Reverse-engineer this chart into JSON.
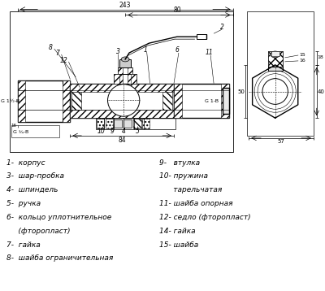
{
  "bg_color": "#ffffff",
  "legend_items_left": [
    "1-  корпус",
    "3-  шар-пробка",
    "4-  шпиндель",
    "5-  ручка",
    "6-  кольцо уплотнительное",
    "     (фторопласт)",
    "7-  гайка",
    "8-  шайба ограничительная"
  ],
  "legend_items_right": [
    "9-   втулка",
    "10- пружина",
    "      тарельчатая",
    "11- шайба опорная",
    "12- седло (фторопласт)",
    "14- гайка",
    "15- шайба"
  ],
  "dim_243": "243",
  "dim_80": "80",
  "dim_84": "84",
  "dim_G34_B": "G ¾-B",
  "dim_G1h_B": "G 1½-B",
  "dim_G1_B": "G 1-B",
  "dim_57": "57",
  "dim_50": "50",
  "dim_40": "40",
  "dim_15": "15",
  "dim_16": "16",
  "dim_18": "18"
}
